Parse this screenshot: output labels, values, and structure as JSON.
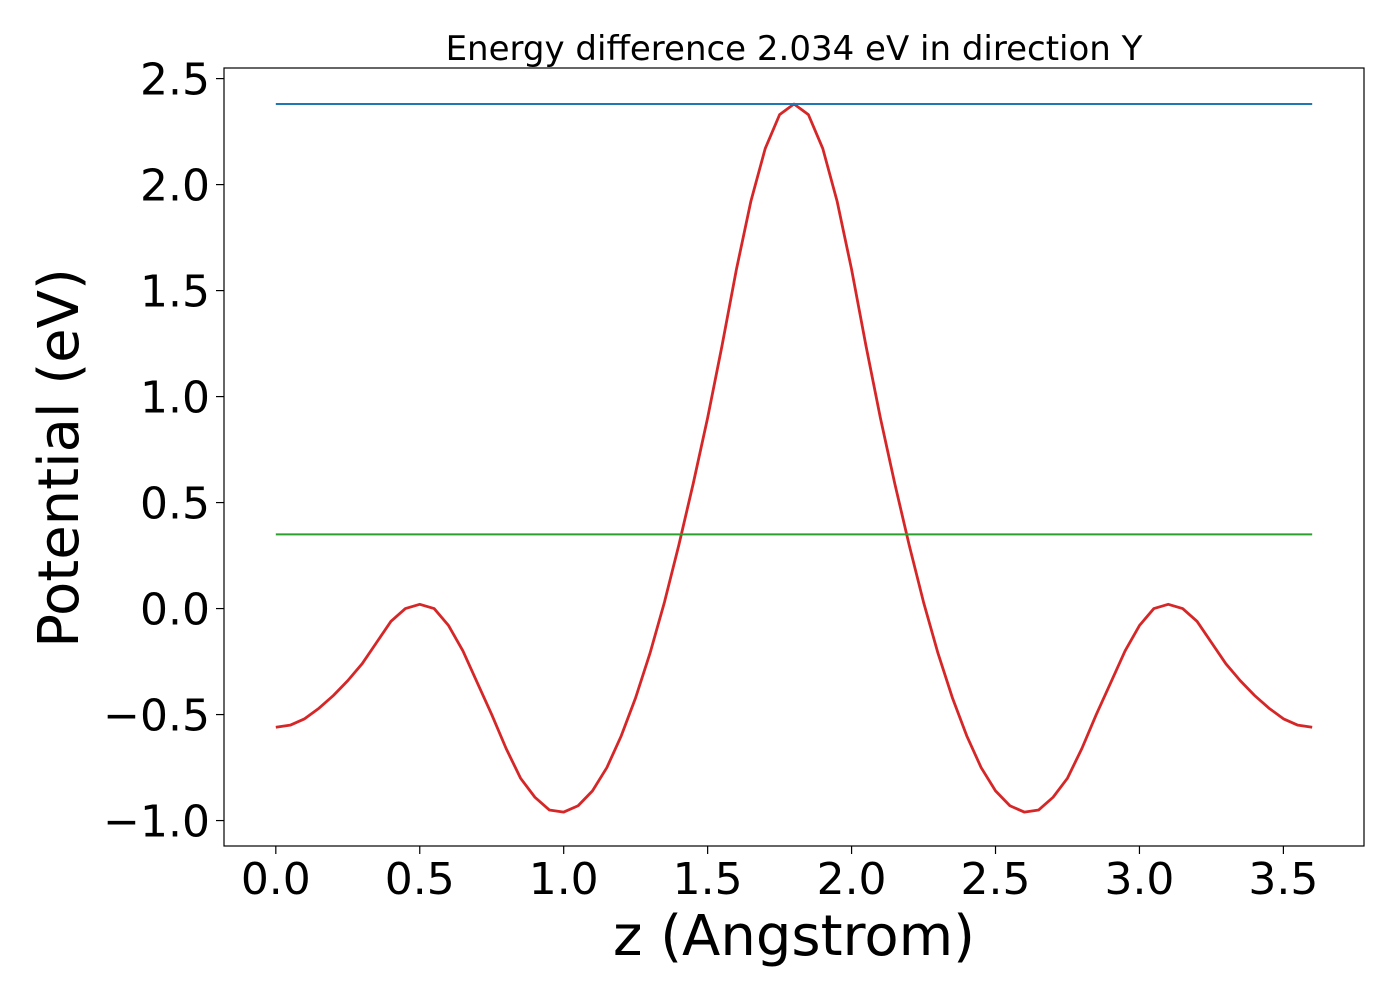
{
  "chart_data": {
    "type": "line",
    "title": "Energy difference 2.034 eV in direction Y",
    "xlabel": "z (Angstrom)",
    "ylabel": "Potential (eV)",
    "xlim": [
      -0.18,
      3.78
    ],
    "ylim": [
      -1.12,
      2.55
    ],
    "grid": false,
    "x_ticks": [
      0.0,
      0.5,
      1.0,
      1.5,
      2.0,
      2.5,
      3.0,
      3.5
    ],
    "x_tick_labels": [
      "0.0",
      "0.5",
      "1.0",
      "1.5",
      "2.0",
      "2.5",
      "3.0",
      "3.5"
    ],
    "y_ticks": [
      -1.0,
      -0.5,
      0.0,
      0.5,
      1.0,
      1.5,
      2.0,
      2.5
    ],
    "y_tick_labels": [
      "−1.0",
      "−0.5",
      "0.0",
      "0.5",
      "1.0",
      "1.5",
      "2.0",
      "2.5"
    ],
    "series": [
      {
        "color": "#d62728",
        "x": [
          0.0,
          0.05,
          0.1,
          0.15,
          0.2,
          0.25,
          0.3,
          0.35,
          0.4,
          0.45,
          0.5,
          0.55,
          0.6,
          0.65,
          0.7,
          0.75,
          0.8,
          0.85,
          0.9,
          0.95,
          1.0,
          1.05,
          1.1,
          1.15,
          1.2,
          1.25,
          1.3,
          1.35,
          1.4,
          1.45,
          1.5,
          1.55,
          1.6,
          1.65,
          1.7,
          1.75,
          1.8,
          1.85,
          1.9,
          1.95,
          2.0,
          2.05,
          2.1,
          2.15,
          2.2,
          2.25,
          2.3,
          2.35,
          2.4,
          2.45,
          2.5,
          2.55,
          2.6,
          2.65,
          2.7,
          2.75,
          2.8,
          2.85,
          2.9,
          2.95,
          3.0,
          3.05,
          3.1,
          3.15,
          3.2,
          3.25,
          3.3,
          3.35,
          3.4,
          3.45,
          3.5,
          3.55,
          3.6
        ],
        "y": [
          -0.56,
          -0.55,
          -0.52,
          -0.47,
          -0.41,
          -0.34,
          -0.26,
          -0.16,
          -0.06,
          0.0,
          0.02,
          0.0,
          -0.08,
          -0.2,
          -0.35,
          -0.5,
          -0.66,
          -0.8,
          -0.89,
          -0.95,
          -0.96,
          -0.93,
          -0.86,
          -0.75,
          -0.6,
          -0.42,
          -0.21,
          0.03,
          0.3,
          0.59,
          0.9,
          1.24,
          1.6,
          1.92,
          2.17,
          2.33,
          2.38,
          2.33,
          2.17,
          1.92,
          1.6,
          1.24,
          0.9,
          0.59,
          0.3,
          0.03,
          -0.21,
          -0.42,
          -0.6,
          -0.75,
          -0.86,
          -0.93,
          -0.96,
          -0.95,
          -0.89,
          -0.8,
          -0.66,
          -0.5,
          -0.35,
          -0.2,
          -0.08,
          0.0,
          0.02,
          0.0,
          -0.06,
          -0.16,
          -0.26,
          -0.34,
          -0.41,
          -0.47,
          -0.52,
          -0.55,
          -0.56
        ]
      },
      {
        "color": "#1f77b4",
        "x": [
          0.0,
          3.6
        ],
        "y": [
          2.38,
          2.38
        ]
      },
      {
        "color": "#2ca02c",
        "x": [
          0.0,
          3.6
        ],
        "y": [
          0.35,
          0.35
        ]
      }
    ]
  }
}
